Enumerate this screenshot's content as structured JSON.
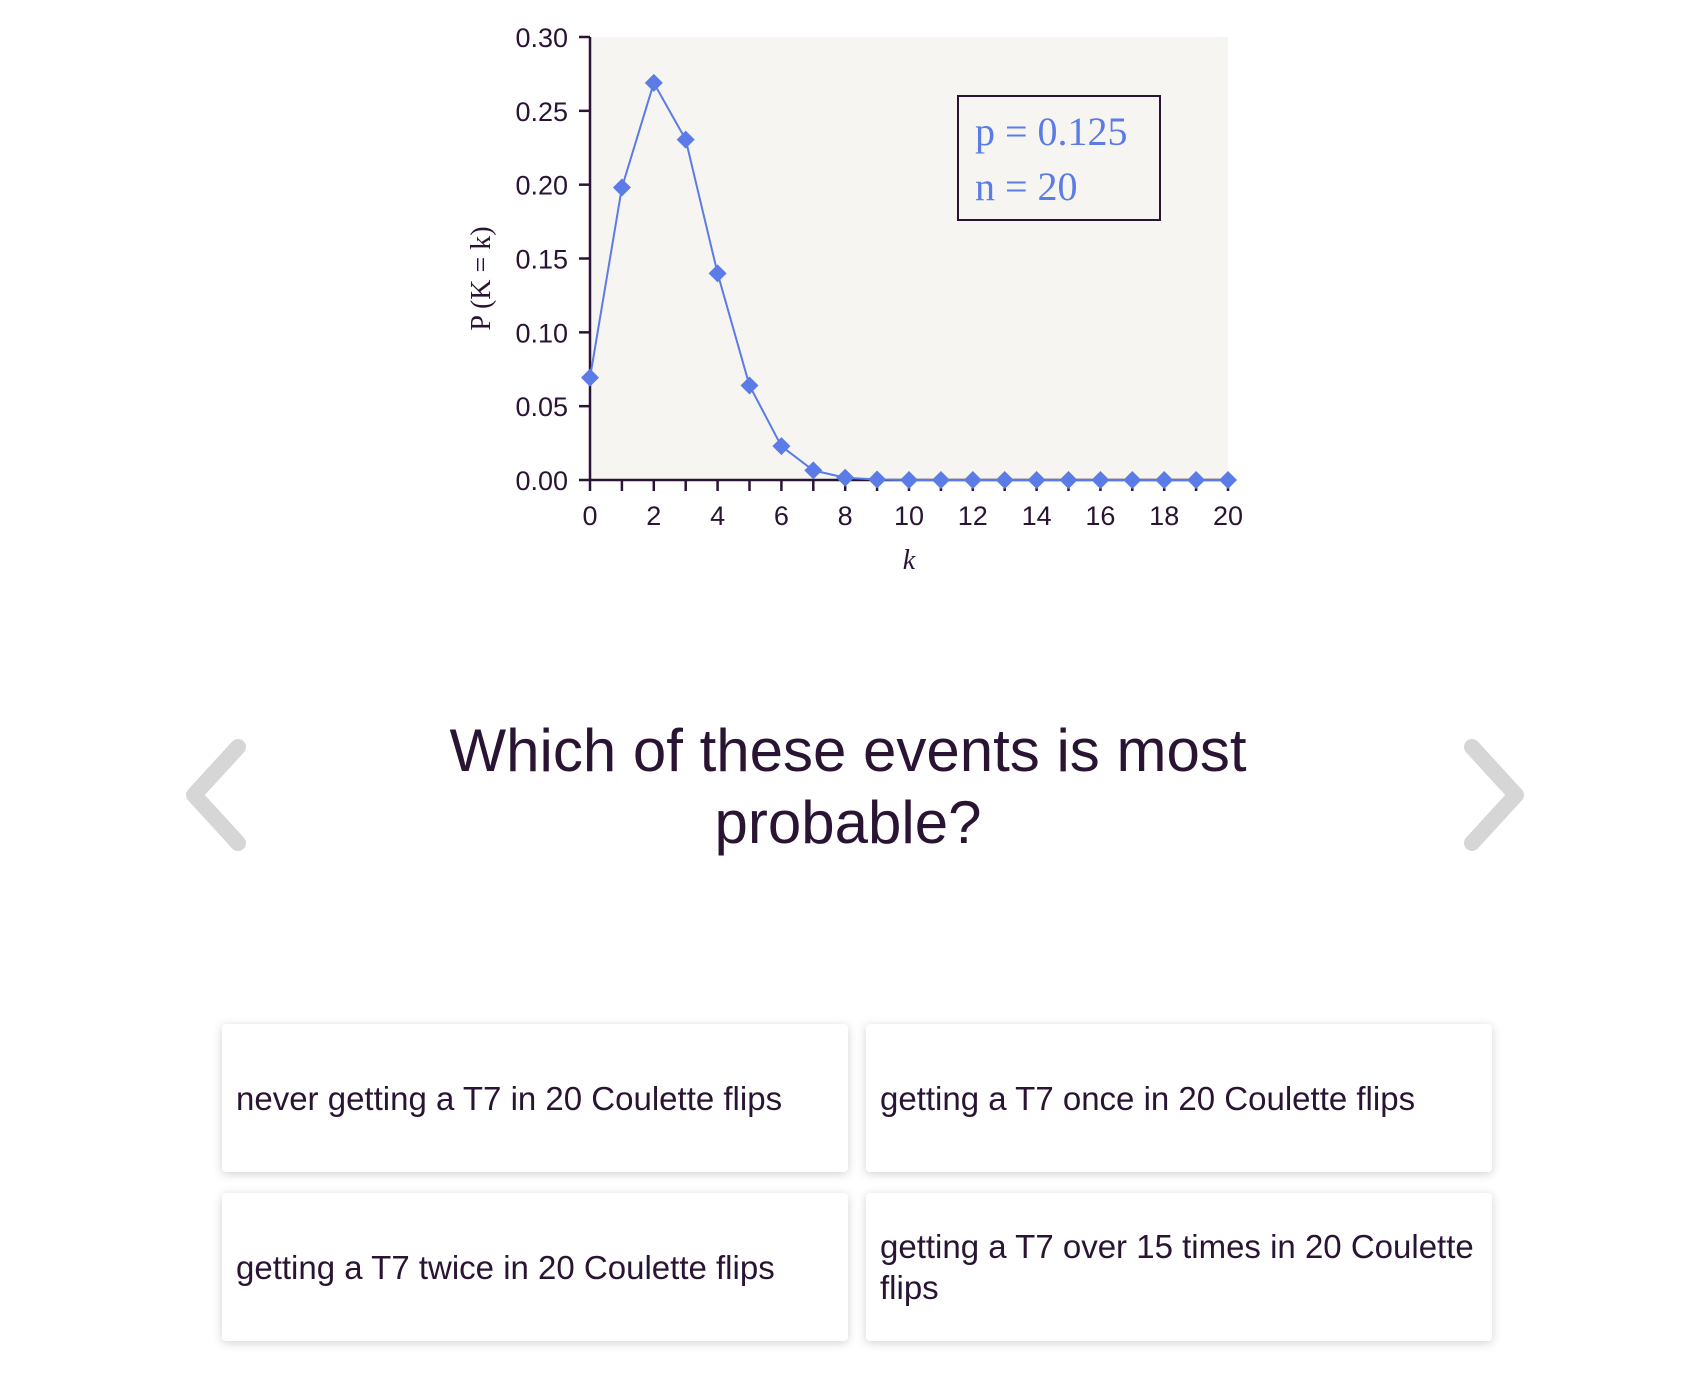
{
  "chart_data": {
    "type": "line",
    "x": [
      0,
      1,
      2,
      3,
      4,
      5,
      6,
      7,
      8,
      9,
      10,
      11,
      12,
      13,
      14,
      15,
      16,
      17,
      18,
      19,
      20
    ],
    "y": [
      0.0693,
      0.1981,
      0.2689,
      0.2305,
      0.1399,
      0.064,
      0.0229,
      0.0065,
      0.0015,
      0.0003,
      0.0,
      0.0,
      0.0,
      0.0,
      0.0,
      0.0,
      0.0,
      0.0,
      0.0,
      0.0,
      0.0
    ],
    "xlabel": "k",
    "ylabel": "P (K = k)",
    "xlim": [
      0,
      20
    ],
    "ylim": [
      0,
      0.3
    ],
    "xticks": [
      "0",
      "2",
      "4",
      "6",
      "8",
      "10",
      "12",
      "14",
      "16",
      "18",
      "20"
    ],
    "yticks": [
      "0.00",
      "0.05",
      "0.10",
      "0.15",
      "0.20",
      "0.25",
      "0.30"
    ],
    "annotations": [
      "p = 0.125",
      "n = 20"
    ],
    "marker": "diamond",
    "series_color": "#5b7be6",
    "plot_background": "#f7f5f1",
    "grid": false
  },
  "question": "Which of these events is most probable?",
  "nav": {
    "prev_icon": "chevron-left-icon",
    "next_icon": "chevron-right-icon",
    "color": "#d6d6d6"
  },
  "answers": [
    "never getting a T7 in 20 Coulette flips",
    "getting a T7 once in 20 Coulette flips",
    "getting a T7 twice in 20 Coulette flips",
    "getting a T7 over 15 times in 20 Coulette flips"
  ]
}
